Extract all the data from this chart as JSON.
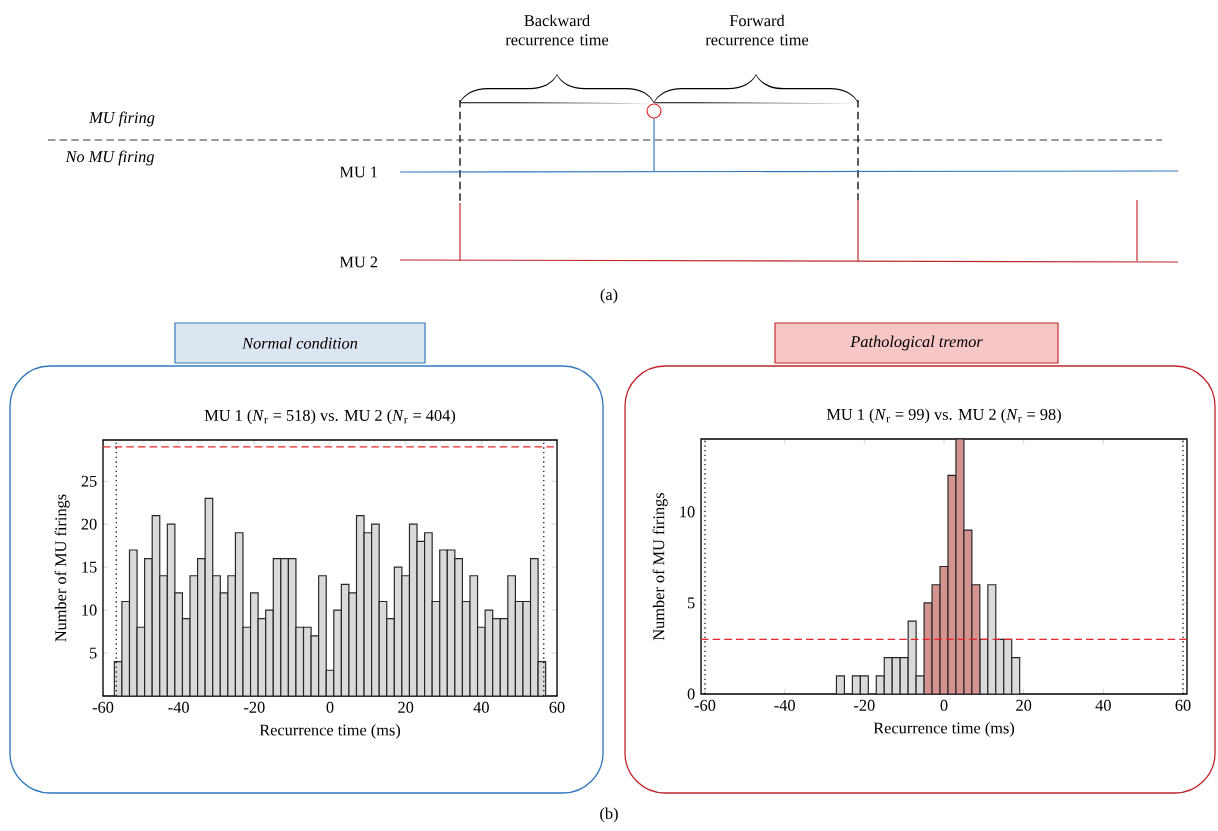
{
  "chart_data": [
    {
      "type": "other",
      "annotations": [
        "Backward recurrence time",
        "Forward recurrence time",
        "MU firing",
        "No MU firing",
        "MU 1",
        "MU 2",
        "(a)"
      ]
    },
    {
      "type": "histogram",
      "title": "Normal condition",
      "subtitle": "MU 1 (*N*$_{r}$ = 518) vs. MU 2 (*N*$_{r}$ = 404)",
      "xlabel": "Recurrence time (ms)",
      "ylabel": "Number of MU firings",
      "bins": [
        -57,
        -55,
        -53,
        -51,
        -49,
        -47,
        -45,
        -43,
        -41,
        -39,
        -37,
        -35,
        -33,
        -31,
        -29,
        -27,
        -25,
        -23,
        -21,
        -19,
        -17,
        -15,
        -13,
        -11,
        -9,
        -7,
        -5,
        -3,
        -1,
        1,
        3,
        5,
        7,
        9,
        11,
        13,
        15,
        17,
        19,
        21,
        23,
        25,
        27,
        29,
        31,
        33,
        35,
        37,
        39,
        41,
        43,
        45,
        47,
        49,
        51,
        53,
        55,
        57
      ],
      "series": [
        {
          "color": "#d9dadc",
          "values": [
            4,
            11,
            17,
            8,
            16,
            21,
            14,
            20,
            12,
            9,
            14,
            16,
            23,
            14,
            12,
            14,
            19,
            8,
            12,
            9,
            10,
            16,
            16,
            16,
            8,
            8,
            7,
            14,
            3,
            10,
            13,
            12,
            21,
            19,
            20,
            11,
            9,
            15,
            14,
            20,
            18,
            19,
            11,
            17,
            17,
            16,
            11,
            14,
            8,
            10,
            9,
            9,
            14,
            11,
            11,
            16,
            4
          ]
        }
      ],
      "xlim": [
        -60,
        60
      ],
      "ylim": [
        0,
        29.8
      ],
      "xticks": [
        -60,
        -40,
        -20,
        0,
        20,
        40,
        60
      ],
      "yticks": [
        5,
        10,
        15,
        20,
        25
      ],
      "ref_lines": [
        {
          "axis": "y",
          "value": 29,
          "color": "#e8262a",
          "line_style": "dashed"
        },
        {
          "axis": "x",
          "value": -56.5,
          "color": "#000000",
          "line_style": "dotted"
        },
        {
          "axis": "x",
          "value": 56.5,
          "color": "#000000",
          "line_style": "dotted"
        }
      ]
    },
    {
      "type": "histogram",
      "title": "Pathological tremor",
      "subtitle": "MU 1 (*N*$_{r}$ = 99) vs. MU 2 (*N*$_{r}$ = 98)",
      "xlabel": "Recurrence time (ms)",
      "ylabel": "Number of MU firings",
      "bins": [
        -27,
        -25,
        -23,
        -21,
        -19,
        -17,
        -15,
        -13,
        -11,
        -9,
        -7,
        -5,
        -3,
        -1,
        1,
        3,
        5,
        7,
        9,
        11,
        13,
        15,
        17,
        19
      ],
      "series": [
        {
          "color": "#d9dadc",
          "values": [
            1,
            0,
            1,
            1,
            0,
            1,
            2,
            2,
            2,
            4,
            1,
            null,
            null,
            null,
            null,
            null,
            null,
            null,
            3,
            6,
            3,
            3,
            2
          ]
        },
        {
          "color": "#d4938f",
          "values": [
            null,
            null,
            null,
            null,
            null,
            null,
            null,
            null,
            null,
            null,
            null,
            5,
            6,
            7,
            12,
            14,
            9,
            6,
            null,
            null,
            null,
            null,
            null
          ]
        }
      ],
      "xlim": [
        -61,
        61
      ],
      "ylim": [
        0,
        14
      ],
      "xticks": [
        -60,
        -40,
        -20,
        0,
        20,
        40,
        60
      ],
      "yticks": [
        0,
        5,
        10
      ],
      "ref_lines": [
        {
          "axis": "y",
          "value": 3,
          "color": "#e8262a",
          "line_style": "dashed"
        },
        {
          "axis": "x",
          "value": -60,
          "color": "#000000",
          "line_style": "dotted"
        },
        {
          "axis": "x",
          "value": 60,
          "color": "#000000",
          "line_style": "dotted"
        }
      ],
      "annotations": [
        "(b)"
      ]
    }
  ]
}
